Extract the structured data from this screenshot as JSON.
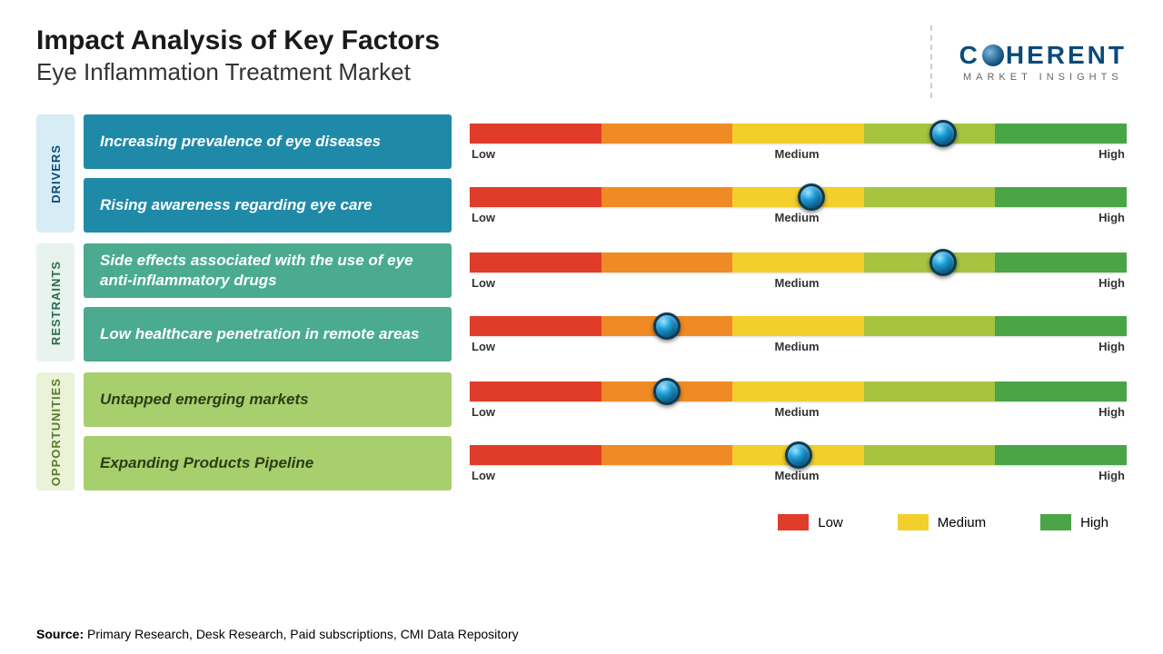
{
  "header": {
    "title": "Impact Analysis of Key Factors",
    "subtitle": "Eye Inflammation Treatment Market"
  },
  "logo": {
    "brand_pre": "C",
    "brand_post": "HERENT",
    "tagline": "MARKET INSIGHTS",
    "brand_color": "#0b4a7a",
    "tagline_color": "#777"
  },
  "scale": {
    "labels": {
      "low": "Low",
      "medium": "Medium",
      "high": "High"
    },
    "segment_colors": [
      "#e03c2a",
      "#ef8a24",
      "#f3cf2c",
      "#a6c440",
      "#4aa546"
    ],
    "label_fontsize": 13
  },
  "groups": [
    {
      "name": "DRIVERS",
      "tab_bg": "#d8ecf5",
      "tab_text_color": "#0b4a7a",
      "factor_bg": "#1f8aa8",
      "rows": [
        {
          "text": "Increasing prevalence of eye diseases",
          "marker_pct": 72
        },
        {
          "text": "Rising awareness regarding eye care",
          "marker_pct": 52
        }
      ]
    },
    {
      "name": "RESTRAINTS",
      "tab_bg": "#e8f3ed",
      "tab_text_color": "#2a6b55",
      "factor_bg": "#4aab91",
      "rows": [
        {
          "text": "Side effects associated with the use of eye anti-inflammatory drugs",
          "marker_pct": 72
        },
        {
          "text": "Low healthcare penetration in remote areas",
          "marker_pct": 30
        }
      ]
    },
    {
      "name": "OPPORTUNITIES",
      "tab_bg": "#eaf2d8",
      "tab_text_color": "#5a7a2a",
      "factor_bg": "#a8cf6e",
      "rows": [
        {
          "text": "Untapped emerging markets",
          "marker_pct": 30
        },
        {
          "text": "Expanding Products Pipeline",
          "marker_pct": 50
        }
      ]
    }
  ],
  "legend": {
    "items": [
      {
        "label": "Low",
        "color": "#e03c2a"
      },
      {
        "label": "Medium",
        "color": "#f3cf2c"
      },
      {
        "label": "High",
        "color": "#4aa546"
      }
    ]
  },
  "source": {
    "label": "Source:",
    "text": "Primary Research, Desk Research, Paid subscriptions, CMI Data Repository"
  },
  "style": {
    "title_fontsize": 30,
    "subtitle_fontsize": 26,
    "factor_fontsize": 17,
    "group_tab_fontsize": 13,
    "marker_diameter": 30
  }
}
